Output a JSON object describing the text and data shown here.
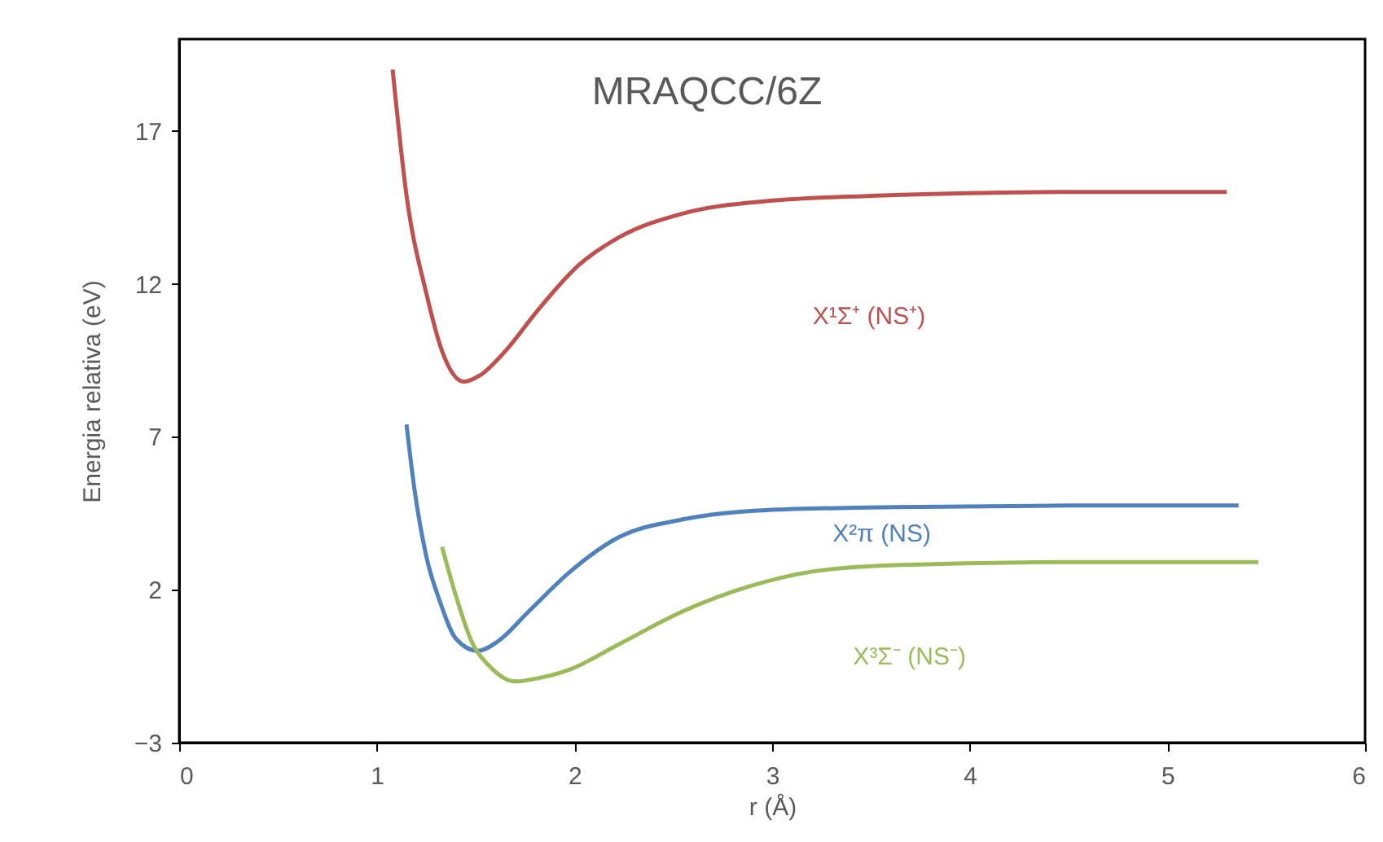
{
  "chart_data": {
    "type": "line",
    "title": "MRAQCC/6Z",
    "xlabel": "r (Å)",
    "ylabel": "Energia relativa (eV)",
    "xlim": [
      0,
      6
    ],
    "xticks": [
      0,
      1,
      2,
      3,
      4,
      5,
      6
    ],
    "ylim": [
      -3,
      20
    ],
    "yticks": [
      -3,
      2,
      7,
      12,
      17
    ],
    "grid": false,
    "series": [
      {
        "name": "X¹Σ⁺ (NS⁺)",
        "color": "#c0504d",
        "x": [
          1.08,
          1.15,
          1.25,
          1.33,
          1.44,
          1.52,
          1.65,
          1.81,
          2.02,
          2.22,
          2.55,
          2.97,
          3.62,
          4.45,
          5.3
        ],
        "values": [
          19.0,
          14.9,
          11.7,
          9.8,
          8.8,
          9.0,
          9.8,
          11.1,
          12.6,
          13.5,
          14.3,
          14.7,
          14.9,
          15.0,
          15.0
        ]
      },
      {
        "name": "X²π (NS)",
        "color": "#4f81bd",
        "x": [
          1.15,
          1.19,
          1.25,
          1.32,
          1.4,
          1.51,
          1.61,
          1.77,
          1.98,
          2.22,
          2.55,
          2.97,
          3.62,
          4.5,
          5.36
        ],
        "values": [
          7.4,
          5.3,
          3.1,
          1.6,
          0.4,
          0.0,
          0.3,
          1.3,
          2.6,
          3.7,
          4.3,
          4.6,
          4.7,
          4.75,
          4.75
        ]
      },
      {
        "name": "X³Σ⁻ (NS⁻)",
        "color": "#9bbb59",
        "x": [
          1.33,
          1.4,
          1.48,
          1.57,
          1.7,
          1.81,
          1.98,
          2.22,
          2.55,
          2.88,
          3.21,
          3.62,
          4.45,
          5.46
        ],
        "values": [
          3.4,
          1.8,
          0.3,
          -0.5,
          -1.0,
          -0.9,
          -0.6,
          0.2,
          1.3,
          2.1,
          2.6,
          2.8,
          2.9,
          2.9
        ]
      }
    ]
  }
}
